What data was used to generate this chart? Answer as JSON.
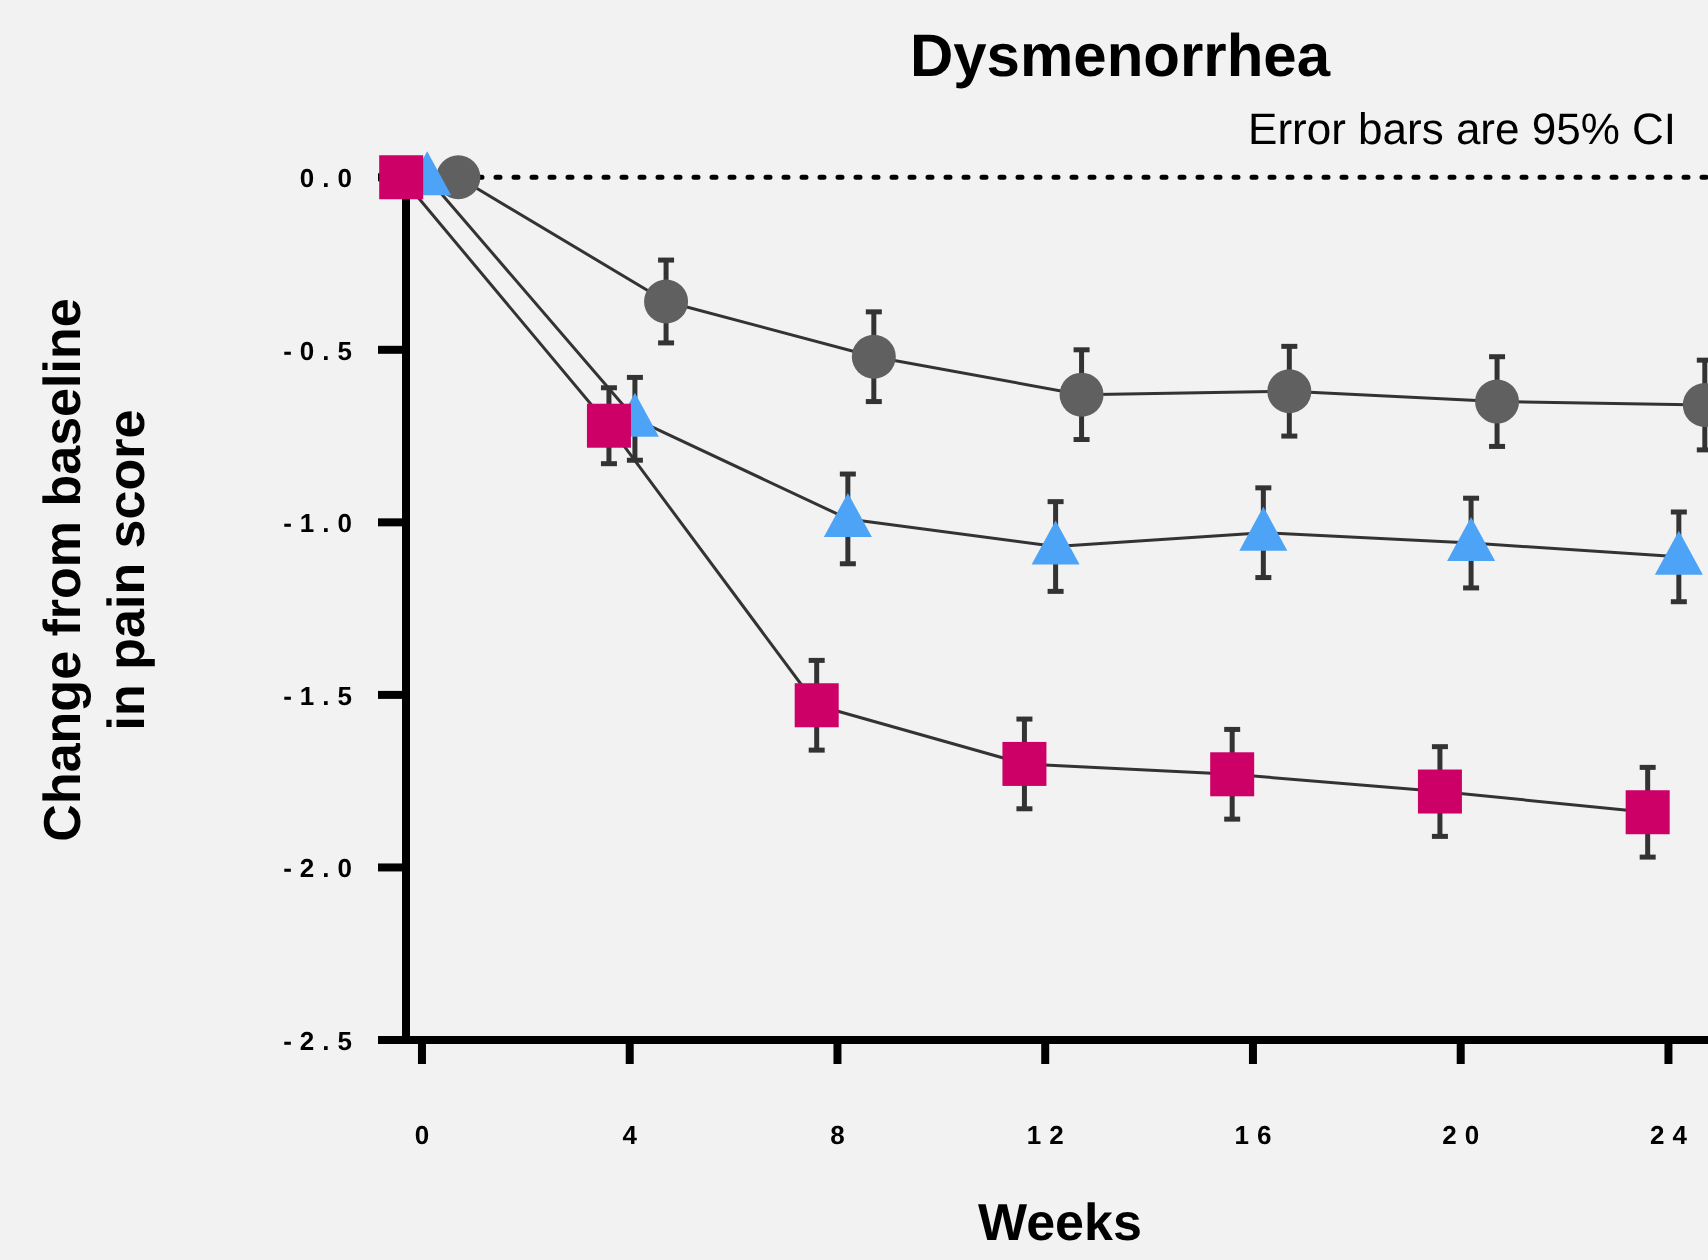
{
  "chart_data": {
    "type": "line",
    "title": "Dysmenorrhea",
    "xlabel": "Weeks",
    "ylabel": "Change from baseline\nin pain score",
    "annotations": [
      "Error bars are 95% CI"
    ],
    "xlim": [
      -0.5,
      24.8
    ],
    "xticks": [
      0,
      4,
      8,
      12,
      16,
      20,
      24
    ],
    "ylim": [
      -2.5,
      0.05
    ],
    "yticks": [
      {
        "value": 0,
        "label": "0.0"
      },
      -0.5,
      {
        "value": -1,
        "label": "-1.0"
      },
      -1.5,
      {
        "value": -2,
        "label": "-2.0"
      },
      -2.5
    ],
    "ref_lines": [
      {
        "axis": "y",
        "value": 0,
        "line_style": "dotted",
        "color": "#000000"
      }
    ],
    "series": [
      {
        "color": "#606060",
        "marker": "circle",
        "x": [
          0.7,
          4.7,
          8.7,
          12.7,
          16.7,
          20.7,
          24.7
        ],
        "values": [
          0,
          -0.36,
          -0.52,
          -0.63,
          -0.62,
          -0.65,
          -0.66
        ],
        "errors": [
          null,
          0.12,
          0.13,
          0.13,
          0.13,
          0.13,
          0.13
        ]
      },
      {
        "color": "#4da3f5",
        "marker": "triangle",
        "x": [
          0.1,
          4.1,
          8.2,
          12.2,
          16.2,
          20.2,
          24.2
        ],
        "values": [
          0,
          -0.7,
          -0.99,
          -1.07,
          -1.03,
          -1.06,
          -1.1
        ],
        "errors": [
          null,
          0.12,
          0.13,
          0.13,
          0.13,
          0.13,
          0.13
        ]
      },
      {
        "color": "#cc0066",
        "marker": "square",
        "x": [
          -0.4,
          3.6,
          7.6,
          11.6,
          15.6,
          19.6,
          23.6
        ],
        "values": [
          0,
          -0.72,
          -1.53,
          -1.7,
          -1.73,
          -1.78,
          -1.84
        ],
        "errors": [
          null,
          0.11,
          0.13,
          0.13,
          0.13,
          0.13,
          0.13
        ]
      }
    ]
  }
}
